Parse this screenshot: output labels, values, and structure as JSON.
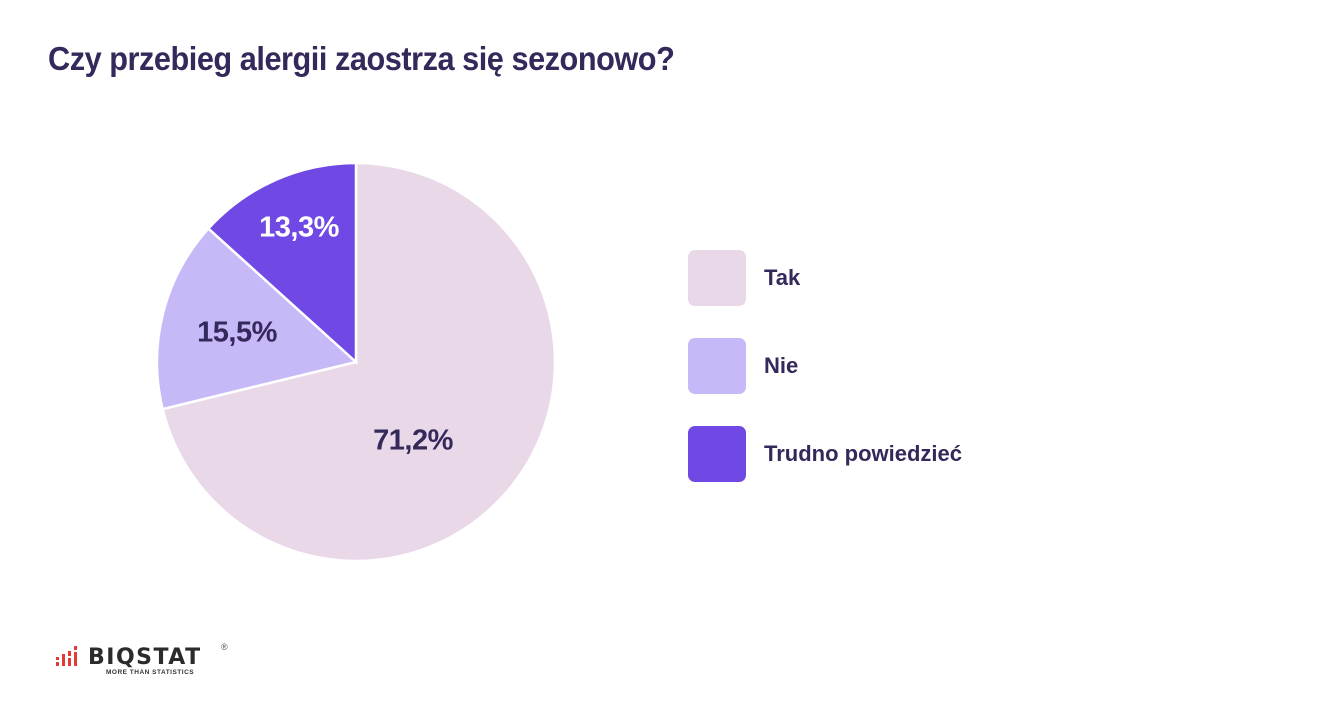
{
  "title": "Czy przebieg alergii zaostrza się sezonowo?",
  "chart_data": {
    "type": "pie",
    "title": "Czy przebieg alergii zaostrza się sezonowo?",
    "categories": [
      "Tak",
      "Nie",
      "Trudno powiedzieć"
    ],
    "values": [
      71.2,
      15.5,
      13.3
    ],
    "value_labels": [
      "71,2%",
      "15,5%",
      "13,3%"
    ],
    "colors": [
      "#e8d8e8",
      "#c7b8f7",
      "#7048e3"
    ],
    "start_angle": "12 o'clock, clockwise",
    "legend_position": "right"
  },
  "pie": {
    "labels": {
      "tak": "71,2%",
      "nie": "15,5%",
      "trudno": "13,3%"
    }
  },
  "legend": {
    "items": [
      {
        "label": "Tak",
        "color": "#e8d8e8"
      },
      {
        "label": "Nie",
        "color": "#c7b8f7"
      },
      {
        "label": "Trudno powiedzieć",
        "color": "#7048e3"
      }
    ]
  },
  "logo": {
    "name": "BIQSTAT",
    "registered": "®",
    "tagline": "MORE THAN STATISTICS"
  }
}
